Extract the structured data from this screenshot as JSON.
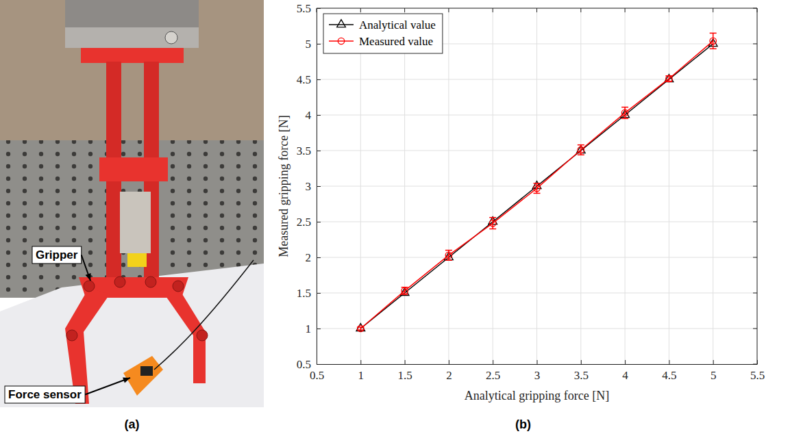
{
  "photo_panel": {
    "caption": "(a)",
    "callouts": [
      {
        "text": "Gripper"
      },
      {
        "text": "Force sensor"
      }
    ]
  },
  "chart_data": {
    "type": "line",
    "caption": "(b)",
    "x_label": "Analytical gripping force [N]",
    "y_label": "Measured gripping force [N]",
    "x": [
      1,
      1.5,
      2,
      2.5,
      3,
      3.5,
      4,
      4.5,
      5
    ],
    "series": [
      {
        "name": "Analytical value",
        "color": "#000000",
        "marker": "triangle",
        "line_style": "solid",
        "values": [
          1,
          1.5,
          2,
          2.5,
          3,
          3.5,
          4,
          4.5,
          5
        ]
      },
      {
        "name": "Measured value",
        "color": "#ff0000",
        "marker": "circle",
        "line_style": "solid",
        "values": [
          1.0,
          1.53,
          2.03,
          2.48,
          2.97,
          3.51,
          4.03,
          4.51,
          5.04
        ],
        "errors": [
          0.02,
          0.05,
          0.07,
          0.08,
          0.07,
          0.07,
          0.08,
          0.04,
          0.11
        ]
      }
    ],
    "xlim": [
      0.5,
      5.5
    ],
    "ylim": [
      0.5,
      5.5
    ],
    "xticks": [
      0.5,
      1,
      1.5,
      2,
      2.5,
      3,
      3.5,
      4,
      4.5,
      5,
      5.5
    ],
    "yticks": [
      0.5,
      1,
      1.5,
      2,
      2.5,
      3,
      3.5,
      4,
      4.5,
      5,
      5.5
    ],
    "grid": true,
    "legend": "northwest"
  }
}
